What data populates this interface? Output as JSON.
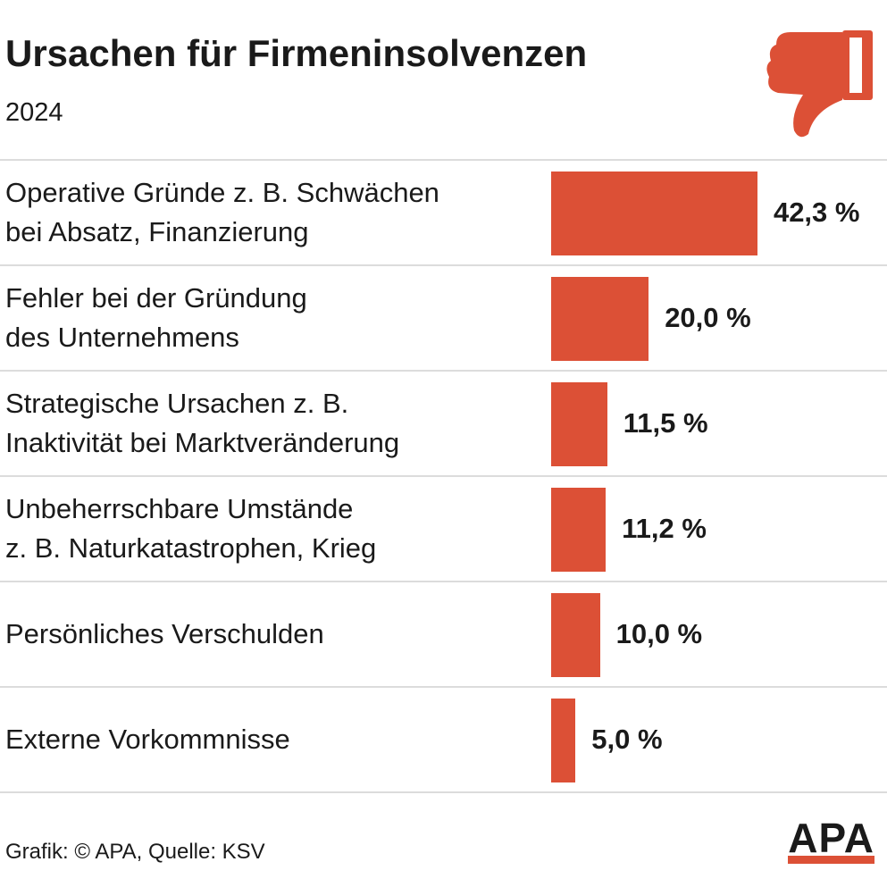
{
  "chart_data": {
    "type": "bar",
    "orientation": "horizontal",
    "title": "Ursachen für Firmeninsolvenzen",
    "subtitle": "2024",
    "categories": [
      "Operative Gründe z. B. Schwächen\nbei Absatz, Finanzierung",
      "Fehler bei der Gründung\ndes Unternehmens",
      "Strategische Ursachen z. B.\nInaktivität bei Marktveränderung",
      "Unbeherrschbare Umstände\nz. B. Naturkatastrophen, Krieg",
      "Persönliches Verschulden",
      "Externe Vorkommnisse"
    ],
    "values": [
      42.3,
      20.0,
      11.5,
      11.2,
      10.0,
      5.0
    ],
    "value_labels": [
      "42,3 %",
      "20,0 %",
      "11,5 %",
      "11,2 %",
      "10,0 %",
      "5,0 %"
    ],
    "color": "#dc5036",
    "source": "Grafik: © APA, Quelle: KSV",
    "logo": "APA"
  }
}
